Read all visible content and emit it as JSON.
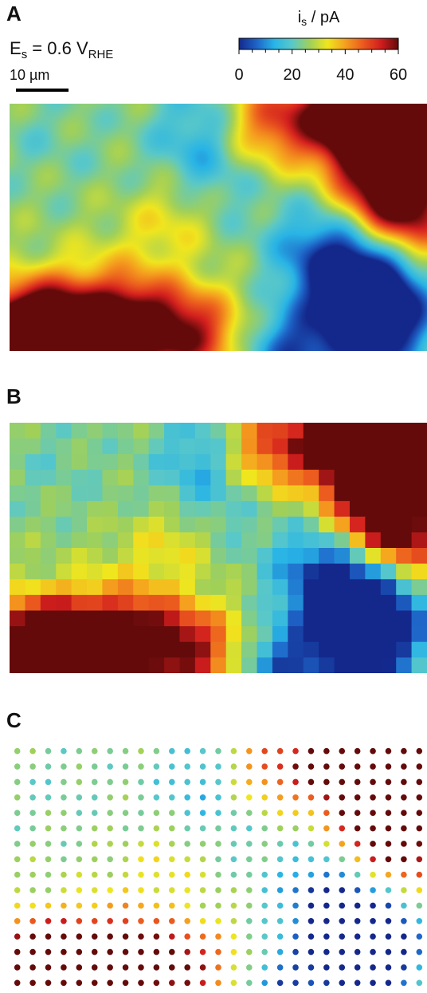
{
  "panels": {
    "a": "A",
    "b": "B",
    "c": "C"
  },
  "annotation": {
    "potential_main": "E",
    "potential_sub": "s",
    "potential_value": " = 0.6 V",
    "potential_value_sub": "RHE"
  },
  "scale_bar": {
    "label": "10 µm"
  },
  "colorbar": {
    "title_main": "i",
    "title_sub": "s",
    "title_rest": " / pA",
    "range": [
      0,
      60
    ],
    "tick_values": [
      0,
      20,
      40,
      60
    ],
    "tick_labels": [
      "0",
      "20",
      "40",
      "60"
    ],
    "colormap": "jet",
    "stops": [
      "#14288c",
      "#1e64c8",
      "#28b4e6",
      "#5ac8c8",
      "#a0d05a",
      "#f0e61e",
      "#f5a01e",
      "#eb5a1e",
      "#d21e1e",
      "#640a0a"
    ]
  },
  "chart_data": [
    {
      "panel": "A",
      "type": "heatmap",
      "interpolation": "smooth",
      "value_label": "i_s / pA",
      "value_range": [
        0,
        60
      ],
      "rows": 16,
      "cols": 27,
      "anchors": [
        {
          "col": 26,
          "row": 0,
          "value": 60
        },
        {
          "col": 24,
          "row": 1,
          "value": 55
        },
        {
          "col": 25,
          "row": 3,
          "value": 55
        },
        {
          "col": 22,
          "row": 2,
          "value": 50
        },
        {
          "col": 21,
          "row": 0,
          "value": 47
        },
        {
          "col": 25,
          "row": 6,
          "value": 46
        },
        {
          "col": 23,
          "row": 5,
          "value": 45
        },
        {
          "col": 19,
          "row": 1,
          "value": 38
        },
        {
          "col": 24,
          "row": 8,
          "value": 35
        },
        {
          "col": 26,
          "row": 9,
          "value": 30
        },
        {
          "col": 1,
          "row": 14,
          "value": 55
        },
        {
          "col": 0,
          "row": 15,
          "value": 52
        },
        {
          "col": 3,
          "row": 15,
          "value": 50
        },
        {
          "col": 8,
          "row": 13,
          "value": 48
        },
        {
          "col": 6,
          "row": 15,
          "value": 45
        },
        {
          "col": 5,
          "row": 13,
          "value": 42
        },
        {
          "col": 2,
          "row": 13,
          "value": 42
        },
        {
          "col": 10,
          "row": 14,
          "value": 40
        },
        {
          "col": 12,
          "row": 14,
          "value": 44
        },
        {
          "col": 16,
          "row": 1,
          "value": 44
        },
        {
          "col": 10,
          "row": 7,
          "value": 34
        },
        {
          "col": 23,
          "row": 14,
          "value": 8
        },
        {
          "col": 22,
          "row": 12,
          "value": 9
        },
        {
          "col": 21,
          "row": 11,
          "value": 10
        },
        {
          "col": 24,
          "row": 12,
          "value": 10
        },
        {
          "col": 20,
          "row": 9,
          "value": 13
        },
        {
          "col": 23,
          "row": 10,
          "value": 12
        },
        {
          "col": 17,
          "row": 15,
          "value": 12
        },
        {
          "col": 19,
          "row": 15,
          "value": 14
        },
        {
          "col": 12,
          "row": 1,
          "value": 17
        },
        {
          "col": 12,
          "row": 4,
          "value": 18
        },
        {
          "col": 18,
          "row": 9,
          "value": 19
        },
        {
          "col": 2,
          "row": 2,
          "value": 22
        },
        {
          "col": 6,
          "row": 4,
          "value": 24
        },
        {
          "col": 14,
          "row": 6,
          "value": 23
        },
        {
          "col": 9,
          "row": 9,
          "value": 25
        },
        {
          "col": 6,
          "row": 10,
          "value": 29
        },
        {
          "col": 15,
          "row": 11,
          "value": 26
        },
        {
          "col": 18,
          "row": 5,
          "value": 24
        },
        {
          "col": 10,
          "row": 2,
          "value": 24
        }
      ],
      "base_value": 25
    },
    {
      "panel": "B",
      "type": "heatmap",
      "interpolation": "nearest",
      "value_label": "i_s / pA",
      "value_range": [
        0,
        60
      ],
      "rows": 16,
      "cols": 27
    },
    {
      "panel": "C",
      "type": "scatter",
      "marker": "circle",
      "value_label": "i_s / pA",
      "value_range": [
        0,
        60
      ],
      "rows": 16,
      "cols": 27
    }
  ]
}
